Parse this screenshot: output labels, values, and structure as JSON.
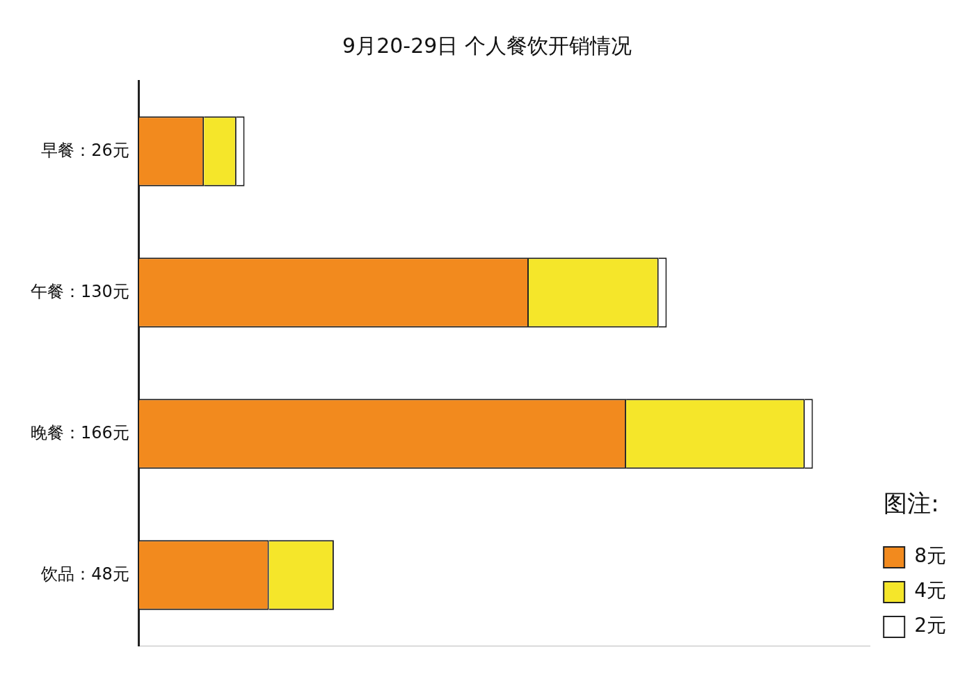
{
  "chart_data": {
    "type": "bar",
    "title": "9月20-29日 个人餐饮开销情况",
    "categories": [
      "早餐：26元",
      "午餐：130元",
      "晚餐：166元",
      "饮品：48元"
    ],
    "series": [
      {
        "name": "8元",
        "color": "#f28a1e",
        "values": [
          16,
          96,
          120,
          32
        ]
      },
      {
        "name": "4元",
        "color": "#f5e62a",
        "values": [
          8,
          32,
          44,
          16
        ]
      },
      {
        "name": "2元",
        "color": "#ffffff",
        "values": [
          2,
          2,
          2,
          0
        ]
      }
    ],
    "orientation": "horizontal",
    "stacked": true,
    "xlim": [
      0,
      180
    ],
    "tick_labels": "y",
    "grid": false,
    "legend": "lower right",
    "legend_title": "图注:"
  }
}
